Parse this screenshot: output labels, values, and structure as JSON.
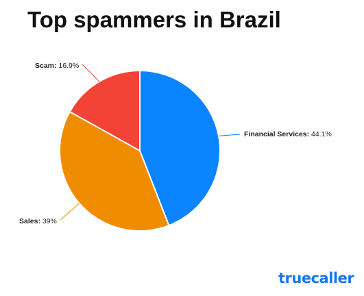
{
  "chart_data": {
    "type": "pie",
    "title": "Top spammers in Brazil",
    "slices": [
      {
        "name": "Financial Services",
        "value": 44.1,
        "label": "44.1%",
        "color": "#0a84ff"
      },
      {
        "name": "Sales",
        "value": 39,
        "label": "39%",
        "color": "#f08c00"
      },
      {
        "name": "Scam",
        "value": 16.9,
        "label": "16.9%",
        "color": "#f24336"
      }
    ],
    "legend": "none",
    "start_angle": "top, clockwise"
  },
  "brand": {
    "logo_text": "truecaller"
  },
  "colors": {
    "title": "#111111",
    "brand": "#1877f2",
    "leader_line": "#f24336"
  }
}
